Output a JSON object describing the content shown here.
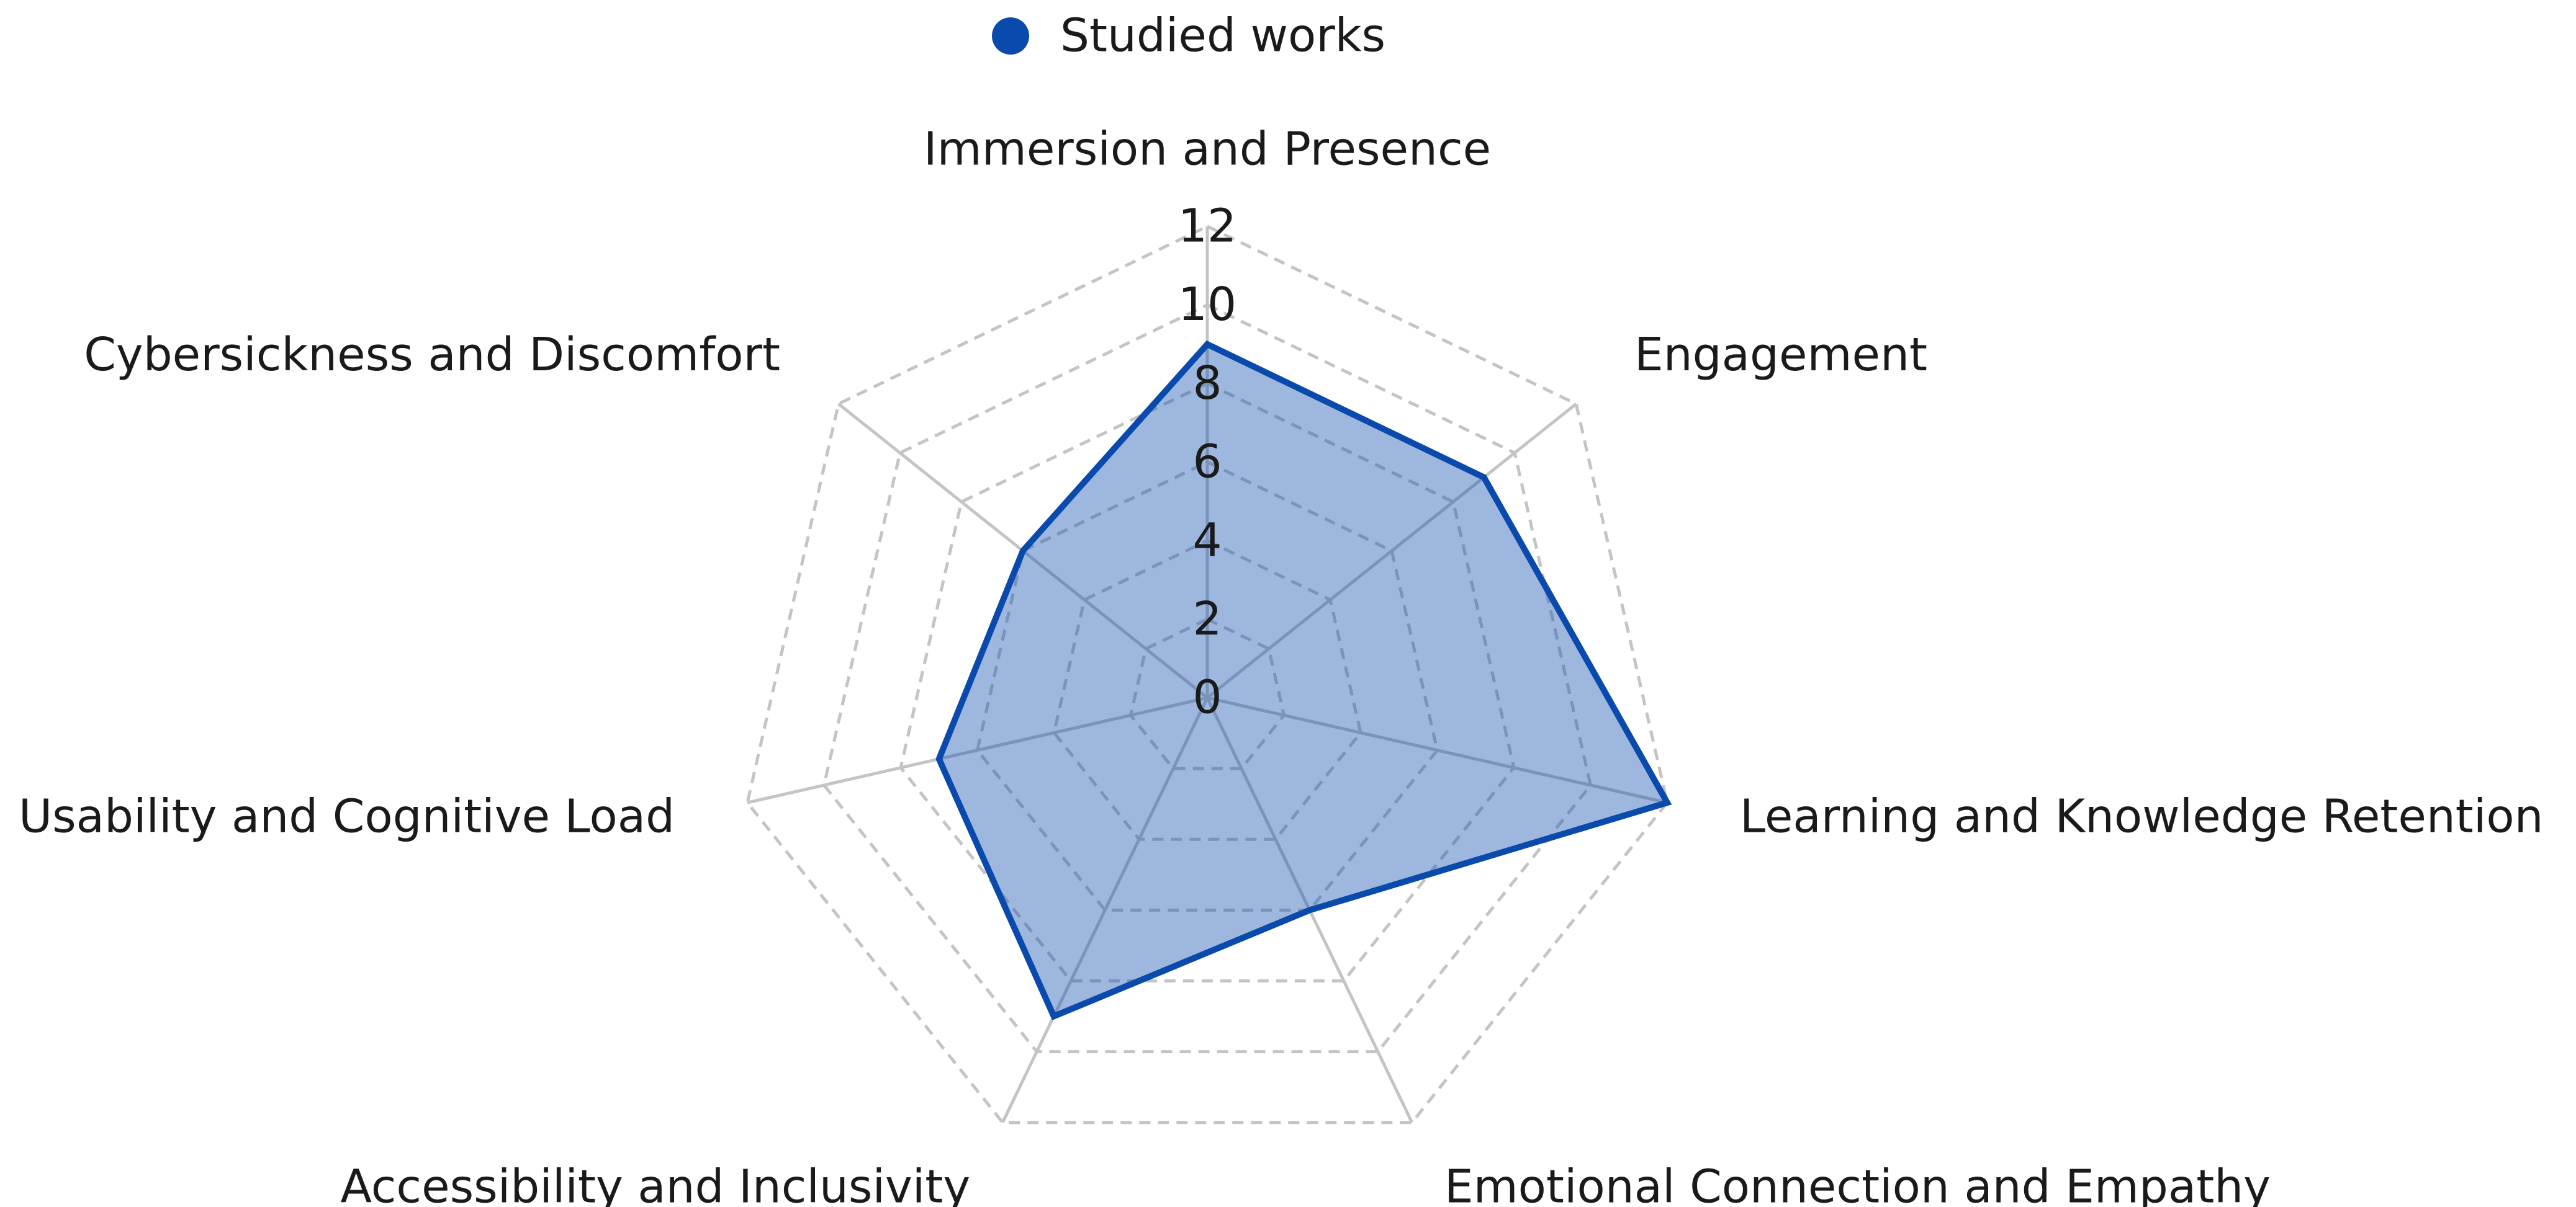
{
  "chart_data": {
    "type": "radar",
    "categories": [
      "Immersion and Presence",
      "Engagement",
      "Learning and Knowledge Retention",
      "Emotional Connection and Empathy",
      "Accessibility and Inclusivity",
      "Usability and Cognitive Load",
      "Cybersickness and Discomfort"
    ],
    "series": [
      {
        "name": "Studied works",
        "color": "#0a4aad",
        "values": [
          9,
          9,
          12,
          6,
          9,
          7,
          6
        ]
      }
    ],
    "ylim": [
      0,
      12
    ],
    "yticks": [
      0,
      2,
      4,
      6,
      8,
      10,
      12
    ],
    "grid": true,
    "legend": "top"
  }
}
